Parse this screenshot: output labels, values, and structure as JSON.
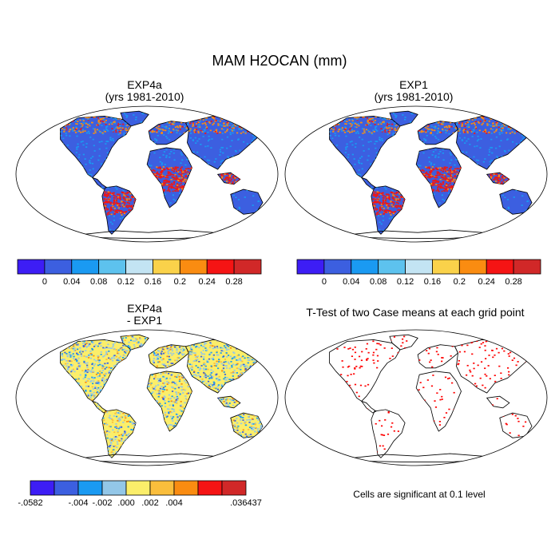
{
  "title": "MAM H2OCAN (mm)",
  "panels": [
    {
      "id": "exp4a",
      "title_line1": "EXP4a",
      "title_line2": "(yrs 1981-2010)"
    },
    {
      "id": "exp1",
      "title_line1": "EXP1",
      "title_line2": "(yrs 1981-2010)"
    },
    {
      "id": "diff",
      "title_line1": "EXP4a",
      "title_line2": "- EXP1"
    },
    {
      "id": "ttest",
      "title_line1": "T-Test of two Case means at each grid point",
      "title_line2": ""
    }
  ],
  "significance_note": "Cells are significant at 0.1 level",
  "colors": {
    "ocean_bg": "#ffffff",
    "coast": "#000000",
    "sig_cells": "#ff0000"
  },
  "chart_data": [
    {
      "type": "heatmap",
      "name": "abs_colorbar",
      "colors": [
        "#3d1df5",
        "#3c5fe0",
        "#1a9af2",
        "#5dc2ee",
        "#c3e4f3",
        "#fad24a",
        "#fa8c11",
        "#f51414",
        "#d12828"
      ],
      "tick_labels": [
        "0",
        "0.04",
        "0.08",
        "0.12",
        "0.16",
        "0.2",
        "0.24",
        "0.28"
      ]
    },
    {
      "type": "heatmap",
      "name": "diff_colorbar",
      "colors": [
        "#3d1df5",
        "#3c5fe0",
        "#1a9af2",
        "#93c7e8",
        "#fbee6a",
        "#fabe3c",
        "#fa8c11",
        "#f51414",
        "#d12828"
      ],
      "tick_labels": [
        "-.0582",
        "-.004",
        "-.002",
        ".000",
        ".002",
        ".004",
        ".036437"
      ]
    }
  ]
}
